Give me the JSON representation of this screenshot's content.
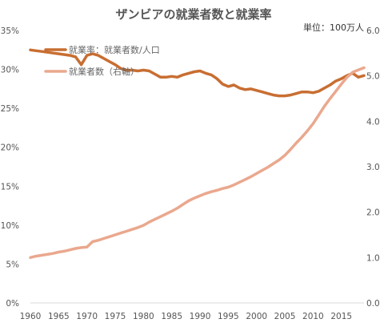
{
  "chart_data": {
    "type": "line",
    "title": "ザンビアの就業者数と就業率",
    "unit_label": "単位：100万人",
    "x": [
      1960,
      1961,
      1962,
      1963,
      1964,
      1965,
      1966,
      1967,
      1968,
      1969,
      1970,
      1971,
      1972,
      1973,
      1974,
      1975,
      1976,
      1977,
      1978,
      1979,
      1980,
      1981,
      1982,
      1983,
      1984,
      1985,
      1986,
      1987,
      1988,
      1989,
      1990,
      1991,
      1992,
      1993,
      1994,
      1995,
      1996,
      1997,
      1998,
      1999,
      2000,
      2001,
      2002,
      2003,
      2004,
      2005,
      2006,
      2007,
      2008,
      2009,
      2010,
      2011,
      2012,
      2013,
      2014,
      2015,
      2016,
      2017,
      2018,
      2019
    ],
    "xticks": [
      1960,
      1965,
      1970,
      1975,
      1980,
      1985,
      1990,
      1995,
      2000,
      2005,
      2010,
      2015
    ],
    "xlim": [
      1960,
      2019
    ],
    "y_left": {
      "ylim": [
        0,
        35
      ],
      "ticks": [
        "0%",
        "5%",
        "10%",
        "15%",
        "20%",
        "25%",
        "30%",
        "35%"
      ]
    },
    "y_right": {
      "ylim": [
        0,
        6
      ],
      "ticks": [
        "0.0",
        "1.0",
        "2.0",
        "3.0",
        "4.0",
        "5.0",
        "6.0"
      ]
    },
    "legend_position": "top-left",
    "grid": false,
    "series": [
      {
        "name": "就業率：就業者数/人口",
        "axis": "left",
        "color": "#C86E32",
        "values": [
          32.5,
          32.4,
          32.3,
          32.2,
          32.1,
          32.0,
          31.9,
          31.8,
          31.6,
          30.6,
          31.8,
          32.0,
          31.8,
          31.4,
          31.0,
          30.6,
          30.1,
          29.9,
          29.9,
          29.8,
          29.9,
          29.8,
          29.4,
          29.0,
          29.0,
          29.1,
          29.0,
          29.3,
          29.5,
          29.7,
          29.8,
          29.5,
          29.3,
          28.8,
          28.1,
          27.8,
          28.0,
          27.6,
          27.4,
          27.5,
          27.3,
          27.1,
          26.9,
          26.7,
          26.6,
          26.6,
          26.7,
          26.9,
          27.1,
          27.1,
          27.0,
          27.2,
          27.6,
          28.0,
          28.5,
          28.8,
          29.2,
          29.5,
          29.0,
          29.2
        ]
      },
      {
        "name": "就業者数（右軸）",
        "axis": "right",
        "color": "#EAA88E",
        "values": [
          1.0,
          1.03,
          1.05,
          1.07,
          1.09,
          1.12,
          1.14,
          1.17,
          1.2,
          1.22,
          1.23,
          1.35,
          1.38,
          1.42,
          1.46,
          1.5,
          1.54,
          1.58,
          1.62,
          1.66,
          1.71,
          1.78,
          1.84,
          1.9,
          1.96,
          2.02,
          2.09,
          2.17,
          2.25,
          2.31,
          2.36,
          2.41,
          2.45,
          2.48,
          2.52,
          2.55,
          2.6,
          2.66,
          2.72,
          2.78,
          2.85,
          2.92,
          2.99,
          3.07,
          3.15,
          3.25,
          3.38,
          3.52,
          3.65,
          3.79,
          3.95,
          4.14,
          4.33,
          4.5,
          4.66,
          4.82,
          4.97,
          5.08,
          5.13,
          5.18
        ]
      }
    ]
  }
}
